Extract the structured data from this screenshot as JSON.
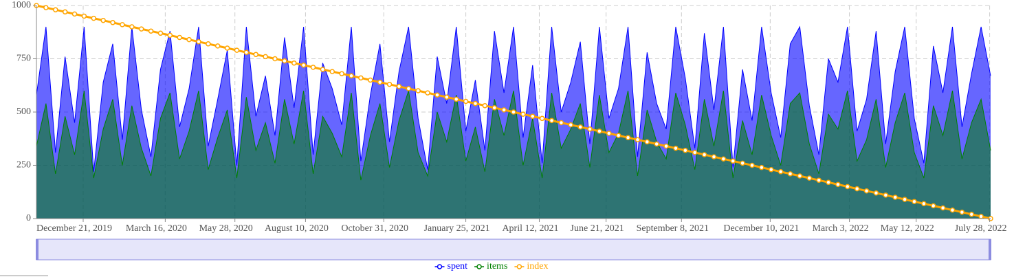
{
  "chart_data": {
    "type": "line",
    "x": [
      "2019-11-02",
      "2019-11-12",
      "2019-11-22",
      "2019-12-02",
      "2019-12-12",
      "2019-12-22",
      "2020-01-01",
      "2020-01-11",
      "2020-01-21",
      "2020-01-31",
      "2020-02-10",
      "2020-02-20",
      "2020-03-01",
      "2020-03-11",
      "2020-03-21",
      "2020-03-31",
      "2020-04-10",
      "2020-04-20",
      "2020-04-30",
      "2020-05-10",
      "2020-05-20",
      "2020-05-30",
      "2020-06-09",
      "2020-06-19",
      "2020-06-29",
      "2020-07-09",
      "2020-07-19",
      "2020-07-29",
      "2020-08-08",
      "2020-08-18",
      "2020-08-28",
      "2020-09-07",
      "2020-09-17",
      "2020-09-27",
      "2020-10-07",
      "2020-10-17",
      "2020-10-27",
      "2020-11-06",
      "2020-11-16",
      "2020-11-26",
      "2020-12-06",
      "2020-12-16",
      "2020-12-26",
      "2021-01-05",
      "2021-01-15",
      "2021-01-25",
      "2021-02-04",
      "2021-02-14",
      "2021-02-24",
      "2021-03-06",
      "2021-03-16",
      "2021-03-26",
      "2021-04-05",
      "2021-04-15",
      "2021-04-25",
      "2021-05-05",
      "2021-05-15",
      "2021-05-25",
      "2021-06-04",
      "2021-06-14",
      "2021-06-24",
      "2021-07-04",
      "2021-07-14",
      "2021-07-24",
      "2021-08-03",
      "2021-08-13",
      "2021-08-23",
      "2021-09-02",
      "2021-09-12",
      "2021-09-22",
      "2021-10-02",
      "2021-10-12",
      "2021-10-22",
      "2021-11-01",
      "2021-11-11",
      "2021-11-21",
      "2021-12-01",
      "2021-12-11",
      "2021-12-21",
      "2021-12-31",
      "2022-01-10",
      "2022-01-20",
      "2022-01-30",
      "2022-02-09",
      "2022-02-19",
      "2022-03-01",
      "2022-03-11",
      "2022-03-21",
      "2022-03-31",
      "2022-04-10",
      "2022-04-20",
      "2022-04-30",
      "2022-05-10",
      "2022-05-20",
      "2022-05-30",
      "2022-06-09",
      "2022-06-19",
      "2022-06-29",
      "2022-07-09",
      "2022-07-19",
      "2022-07-29"
    ],
    "series": [
      {
        "name": "spent",
        "color": "#0000ff",
        "fill": true,
        "values": [
          580,
          900,
          310,
          760,
          450,
          900,
          220,
          640,
          820,
          370,
          900,
          510,
          290,
          700,
          880,
          430,
          610,
          900,
          340,
          560,
          790,
          250,
          900,
          480,
          670,
          390,
          850,
          520,
          900,
          300,
          730,
          610,
          440,
          900,
          270,
          580,
          820,
          360,
          690,
          900,
          470,
          230,
          760,
          540,
          900,
          410,
          650,
          320,
          880,
          590,
          900,
          380,
          720,
          260,
          900,
          500,
          640,
          830,
          350,
          900,
          470,
          610,
          900,
          290,
          780,
          540,
          420,
          900,
          660,
          330,
          870,
          510,
          900,
          240,
          700,
          460,
          900,
          590,
          380,
          820,
          900,
          530,
          300,
          750,
          640,
          900,
          410,
          560,
          880,
          350,
          690,
          900,
          470,
          260,
          810,
          590,
          900,
          430,
          680,
          900,
          670
        ]
      },
      {
        "name": "items",
        "color": "#008000",
        "fill": true,
        "values": [
          340,
          540,
          210,
          480,
          300,
          600,
          190,
          420,
          560,
          250,
          530,
          330,
          200,
          470,
          590,
          280,
          410,
          600,
          230,
          380,
          510,
          190,
          570,
          320,
          450,
          260,
          560,
          350,
          600,
          210,
          480,
          400,
          290,
          590,
          180,
          390,
          540,
          240,
          460,
          600,
          310,
          200,
          500,
          360,
          580,
          270,
          430,
          220,
          560,
          390,
          600,
          250,
          470,
          190,
          590,
          330,
          420,
          540,
          240,
          580,
          310,
          400,
          600,
          200,
          510,
          360,
          280,
          590,
          440,
          230,
          560,
          340,
          600,
          190,
          460,
          300,
          580,
          390,
          250,
          540,
          590,
          350,
          210,
          490,
          420,
          600,
          270,
          370,
          560,
          240,
          450,
          590,
          310,
          190,
          530,
          390,
          600,
          280,
          450,
          560,
          320
        ]
      },
      {
        "name": "index",
        "color": "#ffa500",
        "markers": true,
        "values": [
          1000,
          990,
          980,
          970,
          960,
          950,
          940,
          930,
          920,
          910,
          900,
          890,
          880,
          870,
          860,
          850,
          840,
          830,
          820,
          810,
          800,
          790,
          780,
          770,
          760,
          750,
          740,
          730,
          720,
          710,
          700,
          690,
          680,
          670,
          660,
          650,
          640,
          630,
          620,
          610,
          600,
          590,
          580,
          570,
          560,
          550,
          540,
          530,
          520,
          510,
          500,
          490,
          480,
          470,
          460,
          450,
          440,
          430,
          420,
          410,
          400,
          390,
          380,
          370,
          360,
          350,
          340,
          330,
          320,
          310,
          300,
          290,
          280,
          270,
          260,
          250,
          240,
          230,
          220,
          210,
          200,
          190,
          180,
          170,
          160,
          150,
          140,
          130,
          120,
          110,
          100,
          90,
          80,
          70,
          60,
          50,
          40,
          30,
          20,
          10,
          0
        ]
      }
    ],
    "xlim": [
      "2019-11-02",
      "2022-07-29"
    ],
    "xticks": [
      {
        "value": "2019-12-21",
        "label": "December 21, 2019"
      },
      {
        "value": "2020-03-16",
        "label": "March 16, 2020"
      },
      {
        "value": "2020-05-28",
        "label": "May 28, 2020"
      },
      {
        "value": "2020-08-10",
        "label": "August 10, 2020"
      },
      {
        "value": "2020-10-31",
        "label": "October 31, 2020"
      },
      {
        "value": "2021-01-25",
        "label": "January 25, 2021"
      },
      {
        "value": "2021-04-12",
        "label": "April 12, 2021"
      },
      {
        "value": "2021-06-21",
        "label": "June 21, 2021"
      },
      {
        "value": "2021-09-08",
        "label": "September 8, 2021"
      },
      {
        "value": "2021-12-10",
        "label": "December 10, 2021"
      },
      {
        "value": "2022-03-03",
        "label": "March 3, 2022"
      },
      {
        "value": "2022-05-12",
        "label": "May 12, 2022"
      },
      {
        "value": "2022-07-28",
        "label": "July 28, 2022"
      }
    ],
    "ylim": [
      0,
      1000
    ],
    "yticks": [
      0,
      250,
      500,
      750,
      1000
    ],
    "grid": true
  }
}
